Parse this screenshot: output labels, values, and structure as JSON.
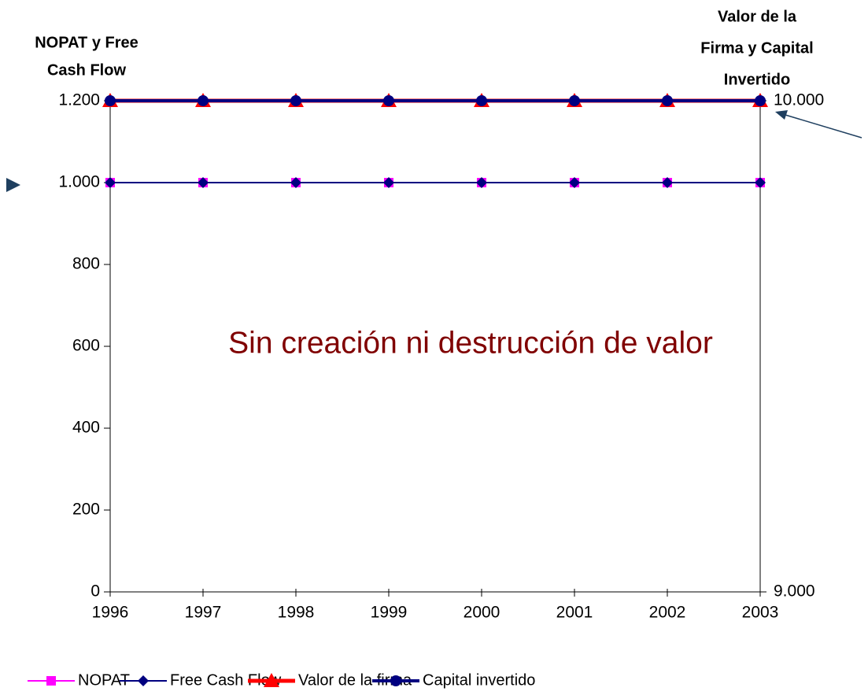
{
  "chart_data": {
    "type": "line",
    "ylabel": [
      "NOPAT y Free",
      "Cash Flow"
    ],
    "y2label": [
      "Valor de la",
      "Firma y Capital",
      "Invertido"
    ],
    "annotation": "Sin creación ni destrucción de valor",
    "categories": [
      "1996",
      "1997",
      "1998",
      "1999",
      "2000",
      "2001",
      "2002",
      "2003"
    ],
    "ylim": [
      0,
      1200
    ],
    "yticks": [
      0,
      200,
      400,
      600,
      800,
      {
        "value": 1000,
        "label": "1.000"
      },
      {
        "value": 1200,
        "label": "1.200"
      }
    ],
    "y2lim": [
      9000,
      10000
    ],
    "y2ticks": [
      {
        "value": 9000,
        "label": "9.000"
      },
      {
        "value": 10000,
        "label": "10.000"
      }
    ],
    "grid": false,
    "legend": "bottom",
    "series": [
      {
        "name": "NOPAT",
        "color": "#ff00ff",
        "marker": "square",
        "values": [
          1000,
          1000,
          1000,
          1000,
          1000,
          1000,
          1000,
          1000
        ]
      },
      {
        "name": "Free Cash Flow",
        "color": "#000080",
        "marker": "diamond",
        "values": [
          1000,
          1000,
          1000,
          1000,
          1000,
          1000,
          1000,
          1000
        ]
      },
      {
        "name": "Valor de la firma",
        "color": "#ff0000",
        "marker": "triangle",
        "axis": "y2",
        "values": [
          10000,
          10000,
          10000,
          10000,
          10000,
          10000,
          10000,
          10000
        ]
      },
      {
        "name": "Capital invertido",
        "color": "#000080",
        "marker": "circle",
        "axis": "y2",
        "values": [
          10000,
          10000,
          10000,
          10000,
          10000,
          10000,
          10000,
          10000
        ]
      }
    ]
  }
}
